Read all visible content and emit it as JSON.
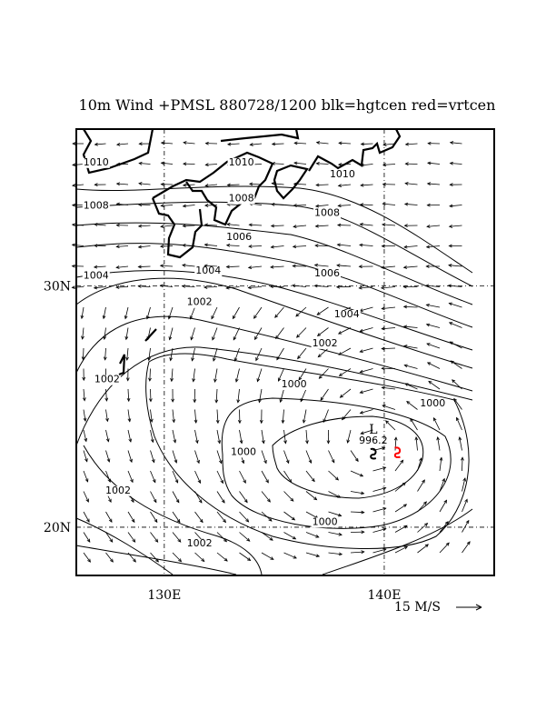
{
  "title": "10m Wind +PMSL 880728/1200 blk=hgtcen red=vrtcen",
  "map": {
    "lon_range": [
      126,
      145
    ],
    "lat_range": [
      18,
      36.5
    ],
    "lon_ticks": [
      {
        "value": 130,
        "label": "130E"
      },
      {
        "value": 140,
        "label": "140E"
      }
    ],
    "lat_ticks": [
      {
        "value": 30,
        "label": "30N"
      },
      {
        "value": 20,
        "label": "20N"
      }
    ],
    "gridlines": "dashed at 130E, 140E, 20N, 30N"
  },
  "wind": {
    "scale_label": "15 M/S",
    "scale_ms": 15,
    "vectors": "10m wind arrows, cyclonic circulation around low near 139.5E, 23.5N"
  },
  "center": {
    "label": "L",
    "pressure_label": "996.2",
    "lon": 139.5,
    "lat": 23.5,
    "hgtcen_color": "#000000",
    "vrtcen_color": "#ff0000",
    "vrtcen_lon": 140.6,
    "vrtcen_lat": 23.1
  },
  "contour_labels": [
    {
      "text": "1010",
      "lon": 126.9,
      "lat": 35.0
    },
    {
      "text": "1010",
      "lon": 133.5,
      "lat": 35.0
    },
    {
      "text": "1010",
      "lon": 138.1,
      "lat": 34.5
    },
    {
      "text": "1008",
      "lon": 126.9,
      "lat": 33.2
    },
    {
      "text": "1008",
      "lon": 133.5,
      "lat": 33.5
    },
    {
      "text": "1008",
      "lon": 137.4,
      "lat": 32.9
    },
    {
      "text": "1006",
      "lon": 133.4,
      "lat": 31.9
    },
    {
      "text": "1006",
      "lon": 137.4,
      "lat": 30.4
    },
    {
      "text": "1004",
      "lon": 126.9,
      "lat": 30.3
    },
    {
      "text": "1004",
      "lon": 132.0,
      "lat": 30.5
    },
    {
      "text": "1004",
      "lon": 138.3,
      "lat": 28.7
    },
    {
      "text": "1002",
      "lon": 131.6,
      "lat": 29.2
    },
    {
      "text": "1002",
      "lon": 137.3,
      "lat": 27.5
    },
    {
      "text": "1002",
      "lon": 127.4,
      "lat": 26.0
    },
    {
      "text": "1002",
      "lon": 127.9,
      "lat": 21.4
    },
    {
      "text": "1002",
      "lon": 131.6,
      "lat": 19.2
    },
    {
      "text": "1000",
      "lon": 135.9,
      "lat": 25.8
    },
    {
      "text": "1000",
      "lon": 142.2,
      "lat": 25.0
    },
    {
      "text": "1000",
      "lon": 133.6,
      "lat": 23.0
    },
    {
      "text": "1000",
      "lon": 137.3,
      "lat": 20.1
    }
  ]
}
